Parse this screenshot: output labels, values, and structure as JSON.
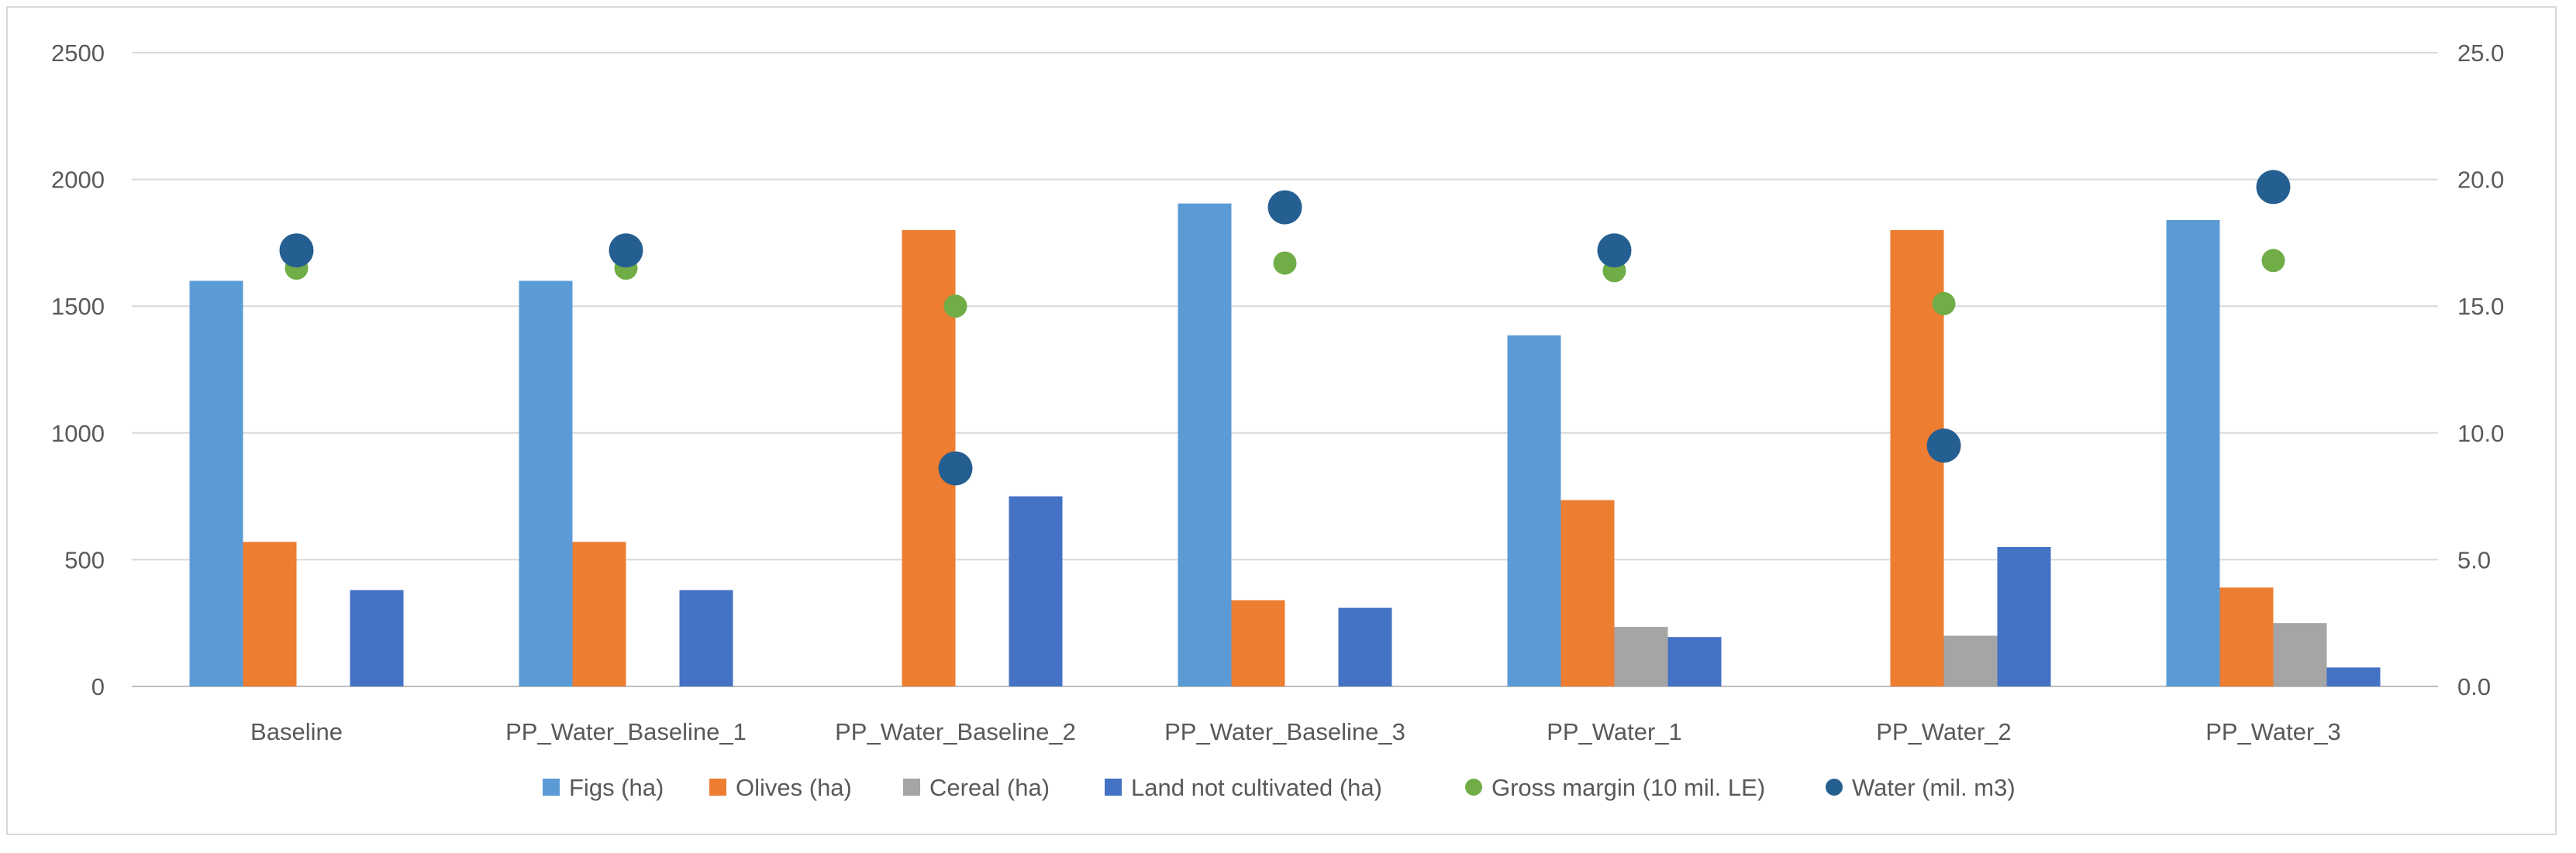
{
  "chart_data": {
    "type": "bar",
    "title": "",
    "categories": [
      "Baseline",
      "PP_Water_Baseline_1",
      "PP_Water_Baseline_2",
      "PP_Water_Baseline_3",
      "PP_Water_1",
      "PP_Water_2",
      "PP_Water_3"
    ],
    "bar_series": [
      {
        "name": "Figs (ha)",
        "color": "#5b9bd5",
        "values": [
          1600,
          1600,
          0,
          1905,
          1385,
          0,
          1840
        ]
      },
      {
        "name": "Olives (ha)",
        "color": "#ed7d31",
        "values": [
          570,
          570,
          1800,
          340,
          735,
          1800,
          390
        ]
      },
      {
        "name": "Cereal (ha)",
        "color": "#a5a5a5",
        "values": [
          0,
          0,
          0,
          0,
          235,
          200,
          250
        ]
      },
      {
        "name": "Land not cultivated (ha)",
        "color": "#4472c4",
        "values": [
          380,
          380,
          750,
          310,
          195,
          550,
          75
        ]
      }
    ],
    "point_series": [
      {
        "name": "Gross margin (10 mil. LE)",
        "color": "#70ad47",
        "axis": "secondary",
        "marker": "small",
        "values": [
          16.5,
          16.5,
          15.0,
          16.7,
          16.4,
          15.1,
          16.8
        ]
      },
      {
        "name": "Water (mil. m3)",
        "color": "#255e91",
        "axis": "secondary",
        "marker": "large",
        "values": [
          17.2,
          17.2,
          8.6,
          18.9,
          17.2,
          9.5,
          19.7
        ]
      }
    ],
    "primary_axis": {
      "ylim": [
        0,
        2500
      ],
      "ticks": [
        "0",
        "500",
        "1000",
        "1500",
        "2000",
        "2500"
      ],
      "tick_values": [
        0,
        500,
        1000,
        1500,
        2000,
        2500
      ]
    },
    "secondary_axis": {
      "ylim": [
        0,
        25
      ],
      "ticks": [
        "0.0",
        "5.0",
        "10.0",
        "15.0",
        "20.0",
        "25.0"
      ],
      "tick_values": [
        0,
        5,
        10,
        15,
        20,
        25
      ]
    },
    "grid": true,
    "legend_position": "bottom",
    "xlabel": "",
    "ylabel": ""
  }
}
